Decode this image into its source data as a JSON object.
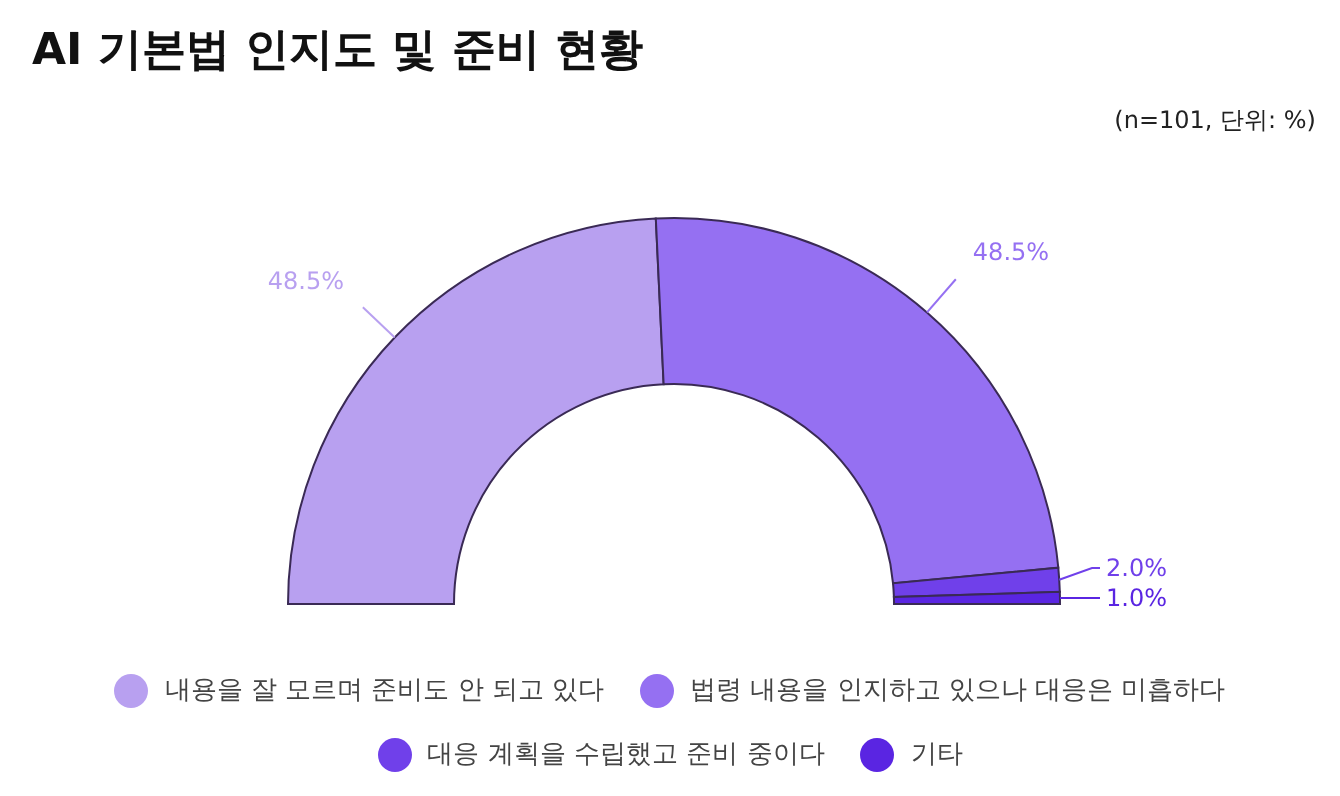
{
  "chart_data": {
    "type": "donut",
    "title": "AI 기본법 인지도 및 준비 현황",
    "annotations": [
      "(n=101, 단위: %)"
    ],
    "categories": [
      "내용을 잘 모르며 준비도 안 되고 있다",
      "법령 내용을 인지하고 있으나 대응은 미흡하다",
      "대응 계획을 수립했고 준비 중이다",
      "기타"
    ],
    "values": [
      48.5,
      48.5,
      2.0,
      1.0
    ],
    "colors": [
      "#b8a0f0",
      "#9570f2",
      "#7040ea",
      "#5a25e2"
    ],
    "value_labels": [
      "48.5%",
      "48.5%",
      "2.0%",
      "1.0%"
    ],
    "legend": "bottom"
  }
}
